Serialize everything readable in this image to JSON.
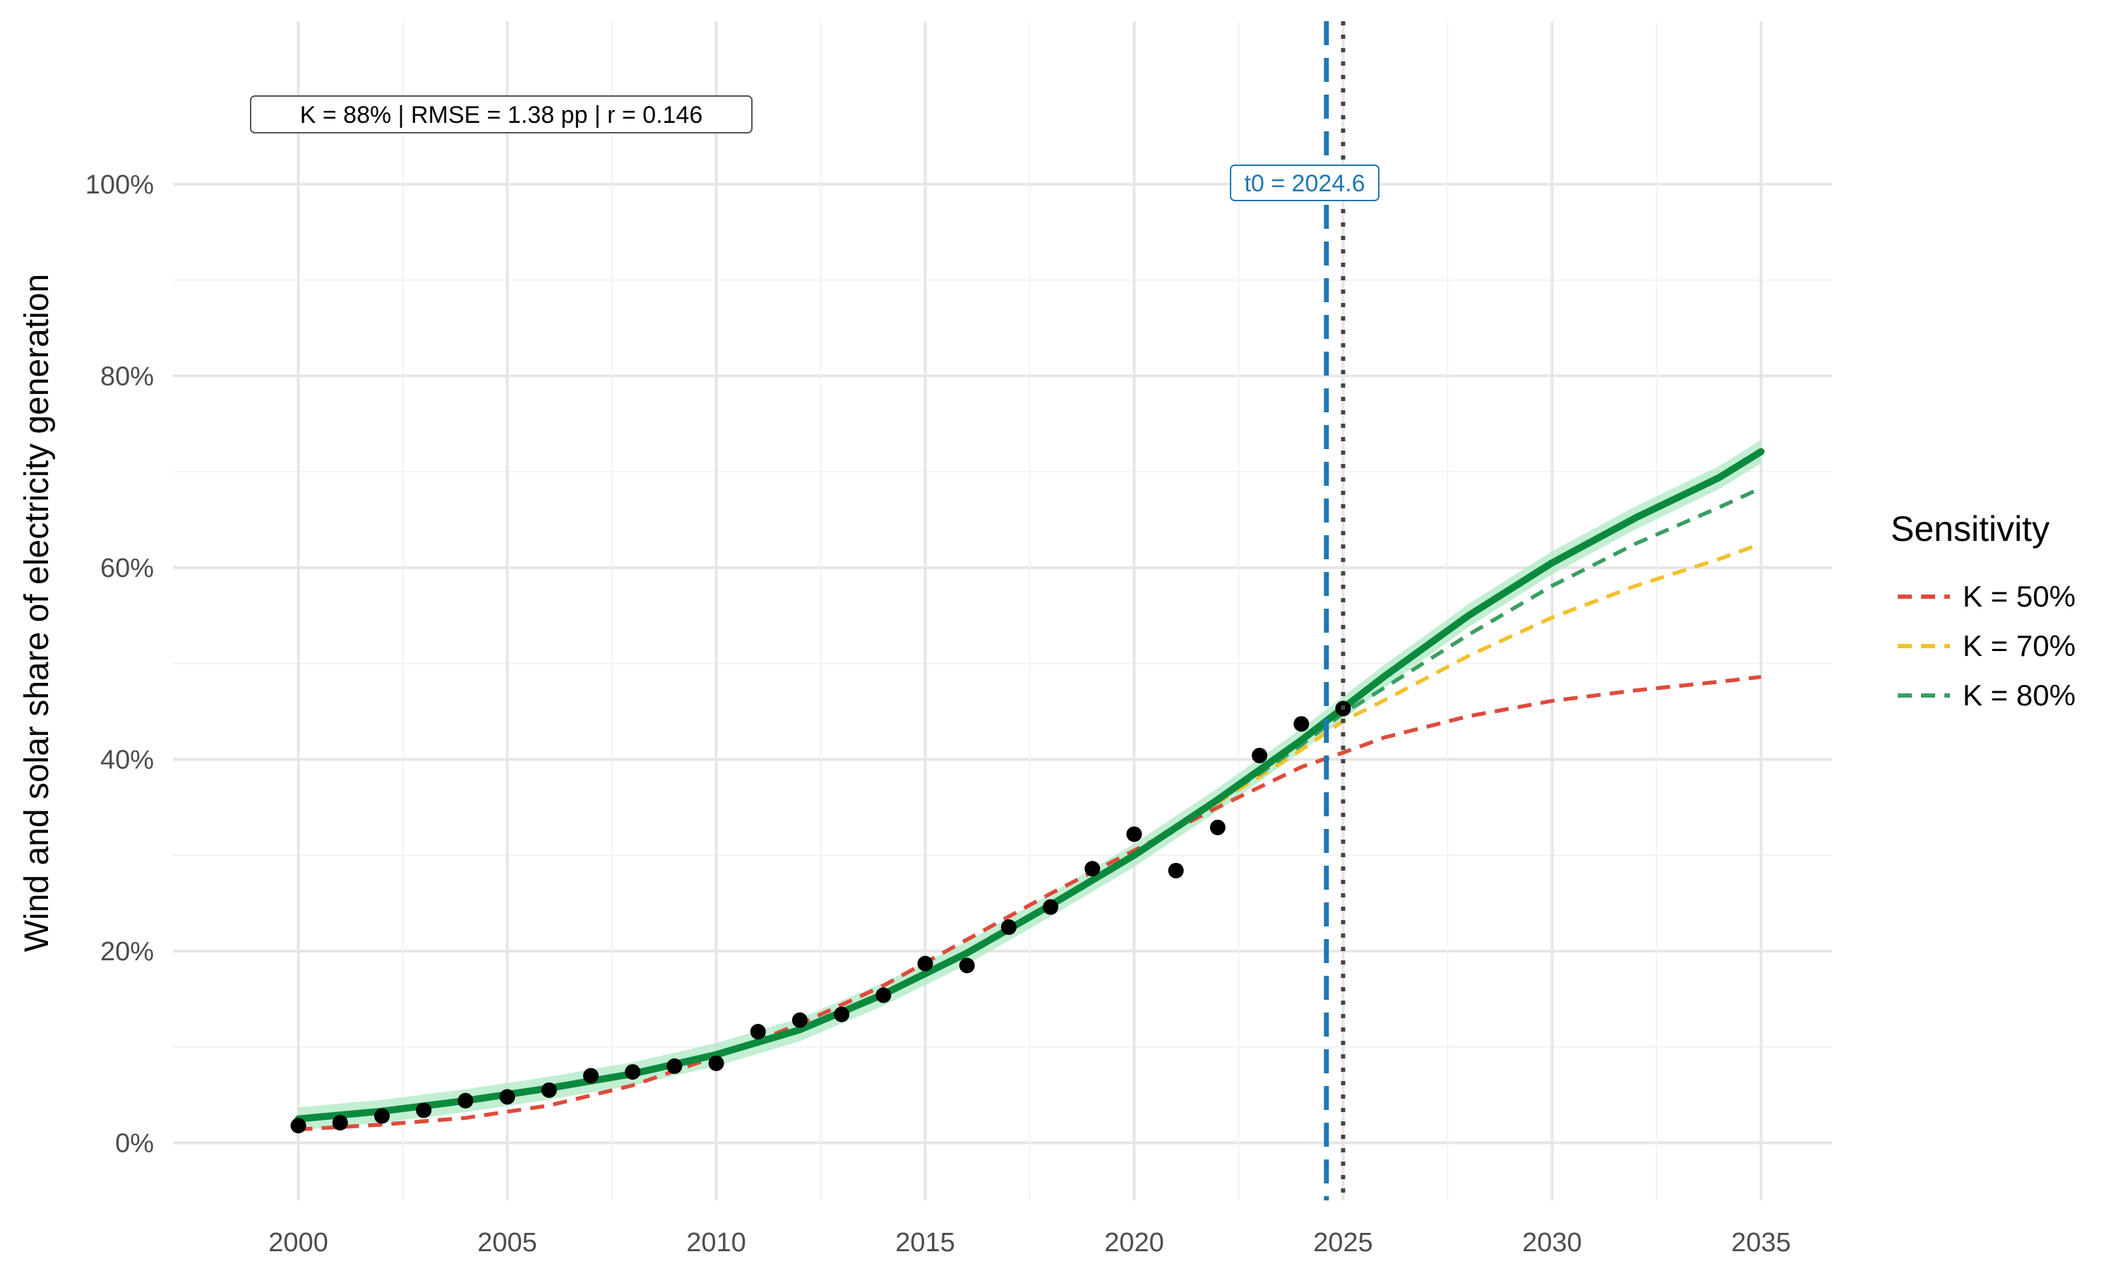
{
  "chart_data": {
    "type": "line",
    "title": "",
    "xlabel": "",
    "ylabel": "Wind and solar share of electricity generation",
    "xlim": [
      1997.0,
      2036.7
    ],
    "ylim": [
      -0.06,
      1.17
    ],
    "x_ticks": [
      2000,
      2005,
      2010,
      2015,
      2020,
      2025,
      2030,
      2035
    ],
    "x_tick_labels": [
      "2000",
      "2005",
      "2010",
      "2015",
      "2020",
      "2025",
      "2030",
      "2035"
    ],
    "y_ticks": [
      0,
      0.2,
      0.4,
      0.6,
      0.8,
      1.0
    ],
    "y_tick_labels": [
      "0%",
      "20%",
      "40%",
      "60%",
      "80%",
      "100%"
    ],
    "grid": true,
    "annotation": "K = 88% | RMSE = 1.38 pp | r = 0.146",
    "t0_label": "t0 = 2024.6",
    "t0_value": 2024.6,
    "last_observed_year": 2025,
    "observed": {
      "x": [
        2000,
        2001,
        2002,
        2003,
        2004,
        2005,
        2006,
        2007,
        2008,
        2009,
        2010,
        2011,
        2012,
        2013,
        2014,
        2015,
        2016,
        2017,
        2018,
        2019,
        2020,
        2021,
        2022,
        2023,
        2024,
        2025
      ],
      "y": [
        0.018,
        0.021,
        0.028,
        0.034,
        0.044,
        0.048,
        0.055,
        0.07,
        0.074,
        0.08,
        0.083,
        0.116,
        0.128,
        0.134,
        0.154,
        0.187,
        0.185,
        0.225,
        0.246,
        0.286,
        0.322,
        0.284,
        0.329,
        0.404,
        0.437,
        0.453
      ]
    },
    "fit": {
      "x": [
        2000,
        2002,
        2004,
        2006,
        2008,
        2010,
        2012,
        2014,
        2016,
        2018,
        2020,
        2022,
        2024,
        2026,
        2028,
        2030,
        2032,
        2034,
        2035
      ],
      "y": [
        0.025,
        0.033,
        0.044,
        0.057,
        0.072,
        0.092,
        0.118,
        0.155,
        0.198,
        0.248,
        0.3,
        0.358,
        0.42,
        0.487,
        0.55,
        0.605,
        0.652,
        0.694,
        0.721
      ],
      "band": 0.012
    },
    "sensitivity_legend_title": "Sensitivity",
    "series": [
      {
        "name": "K = 50%",
        "color": "#de4b3c",
        "x": [
          2000,
          2002,
          2004,
          2006,
          2008,
          2010,
          2012,
          2014,
          2016,
          2018,
          2020,
          2022,
          2024,
          2025,
          2026,
          2028,
          2030,
          2032,
          2034,
          2035
        ],
        "y": [
          0.014,
          0.019,
          0.026,
          0.039,
          0.06,
          0.09,
          0.124,
          0.164,
          0.212,
          0.26,
          0.305,
          0.35,
          0.392,
          0.407,
          0.423,
          0.445,
          0.461,
          0.472,
          0.481,
          0.486
        ]
      },
      {
        "name": "K = 70%",
        "color": "#f2c12e",
        "x": [
          2021,
          2022,
          2023,
          2024,
          2025,
          2026,
          2028,
          2030,
          2032,
          2034,
          2035
        ],
        "y": [
          0.33,
          0.355,
          0.382,
          0.41,
          0.44,
          0.462,
          0.508,
          0.548,
          0.581,
          0.609,
          0.625
        ]
      },
      {
        "name": "K = 80%",
        "color": "#3a9e63",
        "x": [
          2022,
          2023,
          2024,
          2025,
          2026,
          2028,
          2030,
          2032,
          2034,
          2035
        ],
        "y": [
          0.358,
          0.385,
          0.415,
          0.448,
          0.475,
          0.53,
          0.581,
          0.625,
          0.663,
          0.683
        ]
      }
    ],
    "colors": {
      "fit_line": "#0b8a3e",
      "fit_band": "#aee8c3",
      "points": "#000000",
      "t0_line": "#1f78b4",
      "current_year_line": "#444444",
      "grid": "#e6e6e6",
      "axis_text": "#4d4d4d"
    }
  }
}
